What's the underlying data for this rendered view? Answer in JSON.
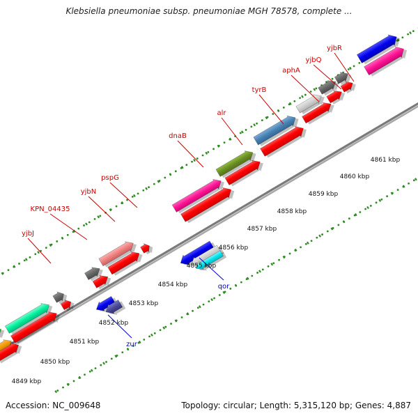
{
  "title": "Klebsiella pneumoniae subsp. pneumoniae MGH 78578, complete ...",
  "footer": {
    "accession": "Accession: NC_009648",
    "info": "Topology: circular; Length: 5,315,120 bp; Genes: 4,887"
  },
  "colors": {
    "label_red": "#cc0000",
    "label_blue": "#0000cc",
    "dots": "#2e8b22"
  },
  "scale_labels": [
    "4849 kbp",
    "4850 kbp",
    "4851 kbp",
    "4852 kbp",
    "4853 kbp",
    "4854 kbp",
    "4855 kbp",
    "4856 kbp",
    "4857 kbp",
    "4858 kbp",
    "4859 kbp",
    "4860 kbp",
    "4861 kbp"
  ],
  "genes": [
    {
      "name": "yjbJ",
      "color": "#cc0000"
    },
    {
      "name": "KPN_04435",
      "color": "#cc0000"
    },
    {
      "name": "yjbN",
      "color": "#cc0000"
    },
    {
      "name": "pspG",
      "color": "#cc0000"
    },
    {
      "name": "dnaB",
      "color": "#cc0000"
    },
    {
      "name": "alr",
      "color": "#cc0000"
    },
    {
      "name": "tyrB",
      "color": "#cc0000"
    },
    {
      "name": "aphA",
      "color": "#cc0000"
    },
    {
      "name": "yjbQ",
      "color": "#cc0000"
    },
    {
      "name": "yjbR",
      "color": "#cc0000"
    },
    {
      "name": "zur",
      "color": "#0000cc"
    },
    {
      "name": "qor",
      "color": "#0000cc"
    }
  ]
}
